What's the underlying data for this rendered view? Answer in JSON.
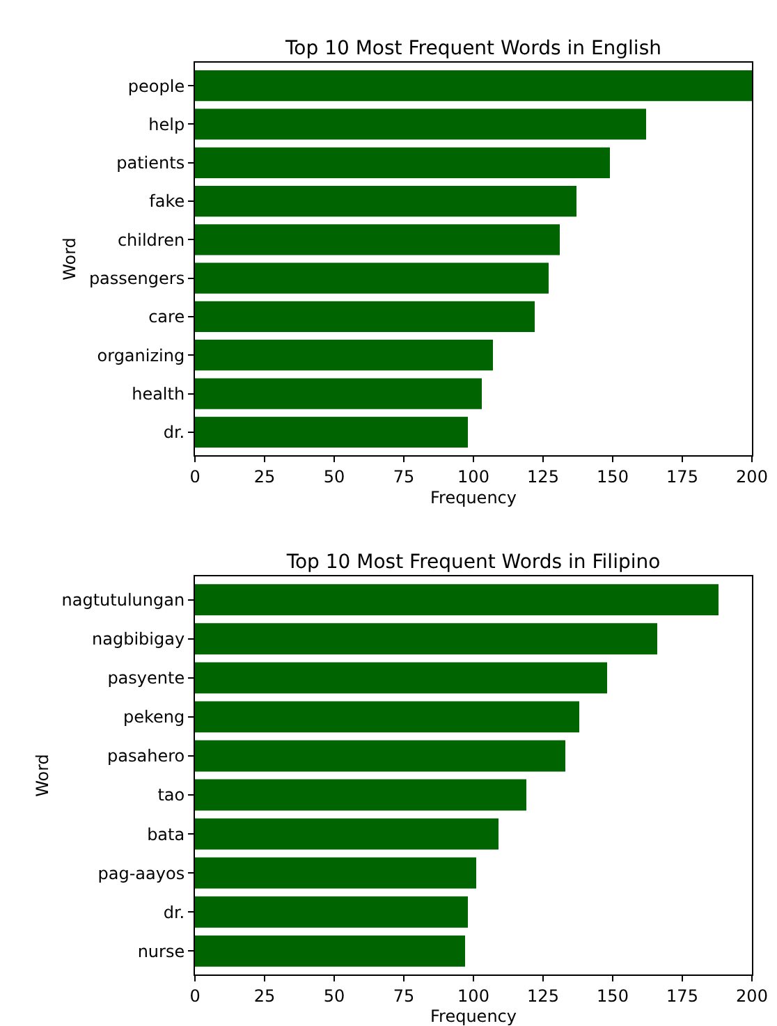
{
  "chart_data": [
    {
      "type": "bar",
      "orientation": "horizontal",
      "title": "Top 10 Most Frequent Words in English",
      "xlabel": "Frequency",
      "ylabel": "Word",
      "categories": [
        "people",
        "help",
        "patients",
        "fake",
        "children",
        "passengers",
        "care",
        "organizing",
        "health",
        "dr."
      ],
      "values": [
        200,
        162,
        149,
        137,
        131,
        127,
        122,
        107,
        103,
        98
      ],
      "color": "#006400",
      "xlim": [
        0,
        200
      ],
      "xticks": [
        0,
        25,
        50,
        75,
        100,
        125,
        150,
        175,
        200
      ],
      "grid": false,
      "legend": false
    },
    {
      "type": "bar",
      "orientation": "horizontal",
      "title": "Top 10 Most Frequent Words in Filipino",
      "xlabel": "Frequency",
      "ylabel": "Word",
      "categories": [
        "nagtutulungan",
        "nagbibigay",
        "pasyente",
        "pekeng",
        "pasahero",
        "tao",
        "bata",
        "pag-aayos",
        "dr.",
        "nurse"
      ],
      "values": [
        188,
        166,
        148,
        138,
        133,
        119,
        109,
        101,
        98,
        97
      ],
      "color": "#006400",
      "xlim": [
        0,
        200
      ],
      "xticks": [
        0,
        25,
        50,
        75,
        100,
        125,
        150,
        175,
        200
      ],
      "grid": false,
      "legend": false
    }
  ]
}
